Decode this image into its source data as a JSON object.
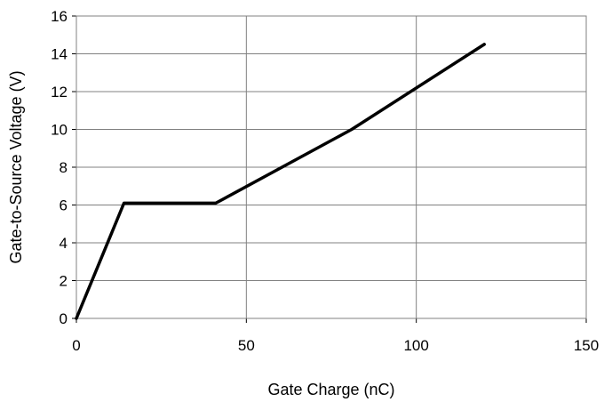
{
  "chart_data": {
    "type": "line",
    "title": "",
    "xlabel": "Gate Charge (nC)",
    "ylabel": "Gate-to-Source Voltage (V)",
    "xlim": [
      0,
      150
    ],
    "ylim": [
      0,
      16
    ],
    "x_ticks": [
      0,
      50,
      100,
      150
    ],
    "y_ticks": [
      0,
      2,
      4,
      6,
      8,
      10,
      12,
      14,
      16
    ],
    "grid": true,
    "legend": "none",
    "series": [
      {
        "x": [
          0,
          14,
          41,
          81,
          120
        ],
        "y": [
          0,
          6.1,
          6.1,
          10,
          14.5
        ]
      }
    ]
  }
}
